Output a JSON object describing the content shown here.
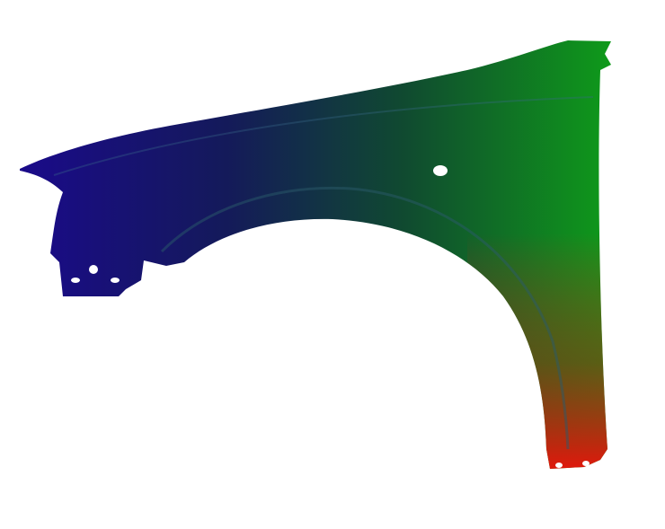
{
  "image": {
    "subject": "car-front-fender",
    "colors": {
      "background": "#ffffff",
      "left": "#1a0a8a",
      "top_right": "#0f9a1a",
      "bottom_right": "#d01a10",
      "middle": "#123a4a"
    }
  }
}
